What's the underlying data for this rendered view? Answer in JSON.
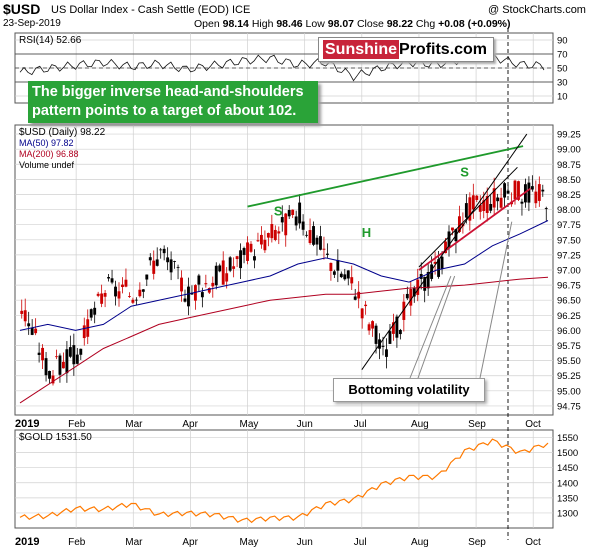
{
  "header": {
    "symbol": "$USD",
    "description": "US Dollar Index - Cash Settle (EOD) ICE",
    "date": "23-Sep-2019",
    "open_label": "Open",
    "open": "98.14",
    "high_label": "High",
    "high": "98.46",
    "low_label": "Low",
    "low": "98.07",
    "close_label": "Close",
    "close": "98.22",
    "chg_label": "Chg",
    "chg": "+0.08 (+0.09%)",
    "brand": "@ StockCharts.com"
  },
  "logo": {
    "part1": "Sunshine",
    "part2": "Profits.com"
  },
  "callout": "The bigger inverse head-and-shoulders pattern points to a target of about 102.",
  "volatility_label": "Bottoming volatility",
  "pattern_labels": [
    "S",
    "H",
    "S"
  ],
  "colors": {
    "up": "#000000",
    "down": "#cc0000",
    "ma50": "#00008b",
    "ma200": "#b00020",
    "gold": "#ff7a00",
    "green_line": "#1f9a2c",
    "red_line": "#cc1133",
    "grid": "#d0d0d0",
    "callout_bg": "#2aa338"
  },
  "chart_data": [
    {
      "panel": "rsi",
      "type": "line",
      "legend": "RSI(14) 52.66",
      "ylim": [
        0,
        100
      ],
      "y_ticks": [
        "90",
        "70",
        "50",
        "30",
        "10"
      ],
      "reference_lines": [
        70,
        50,
        30
      ],
      "x": [
        "Jan 1",
        "Jan 15",
        "Jan 29",
        "Feb 12",
        "Feb 26",
        "Mar 12",
        "Mar 26",
        "Apr 9",
        "Apr 23",
        "May 7",
        "May 21",
        "Jun 4",
        "Jun 18",
        "Jul 2",
        "Jul 16",
        "Jul 30",
        "Aug 13",
        "Aug 27",
        "Sep 10",
        "Sep 23"
      ],
      "values": [
        44,
        49,
        54,
        58,
        52,
        56,
        48,
        54,
        60,
        64,
        55,
        58,
        38,
        50,
        58,
        55,
        63,
        66,
        55,
        52.66
      ]
    },
    {
      "panel": "price",
      "type": "candlestick",
      "legend": [
        "$USD (Daily) 98.22",
        "MA(50) 97.82",
        "MA(200) 96.88",
        "Volume undef"
      ],
      "ylim": [
        94.6,
        99.4
      ],
      "y_ticks": [
        "99.25",
        "99.00",
        "98.75",
        "98.50",
        "98.25",
        "98.00",
        "97.75",
        "97.50",
        "97.25",
        "97.00",
        "96.75",
        "96.50",
        "96.25",
        "96.00",
        "95.75",
        "95.50",
        "95.25",
        "95.00",
        "94.75"
      ],
      "x_tick_labels": [
        "2019",
        "Feb",
        "Mar",
        "Apr",
        "May",
        "Jun",
        "Jul",
        "Aug",
        "Sep",
        "Oct"
      ],
      "x": [
        "Jan 1",
        "Jan 15",
        "Jan 29",
        "Feb 12",
        "Feb 26",
        "Mar 12",
        "Mar 26",
        "Apr 9",
        "Apr 23",
        "May 7",
        "May 21",
        "Jun 4",
        "Jun 18",
        "Jul 2",
        "Jul 16",
        "Jul 30",
        "Aug 13",
        "Aug 27",
        "Sep 10",
        "Sep 23"
      ],
      "close": [
        96.4,
        95.3,
        95.6,
        96.7,
        96.6,
        97.3,
        96.6,
        96.9,
        97.2,
        97.6,
        97.9,
        97.2,
        96.7,
        95.6,
        96.5,
        97.1,
        98.0,
        98.2,
        98.3,
        98.22
      ],
      "ma50": [
        96.0,
        96.1,
        96.0,
        96.1,
        96.4,
        96.5,
        96.6,
        96.7,
        96.8,
        96.9,
        97.1,
        97.2,
        97.1,
        96.9,
        96.8,
        97.0,
        97.1,
        97.4,
        97.6,
        97.82
      ],
      "ma200": [
        94.8,
        95.1,
        95.4,
        95.7,
        95.9,
        96.1,
        96.2,
        96.3,
        96.4,
        96.5,
        96.55,
        96.6,
        96.6,
        96.65,
        96.7,
        96.72,
        96.75,
        96.8,
        96.85,
        96.88
      ],
      "annotations": [
        {
          "type": "resistance",
          "color": "green",
          "from": [
            "May 1",
            98.05
          ],
          "to": [
            "Sep 26",
            99.05
          ]
        },
        {
          "type": "support",
          "color": "red",
          "from": [
            "Aug 1",
            97.0
          ],
          "to": [
            "Sep 30",
            98.35
          ]
        },
        {
          "type": "trendline",
          "color": "black",
          "from": [
            "Jul 1",
            95.35
          ],
          "to": [
            "Sep 28",
            99.25
          ]
        },
        {
          "type": "trendline",
          "color": "black",
          "from": [
            "Aug 1",
            97.05
          ],
          "to": [
            "Sep 23",
            98.7
          ]
        }
      ]
    },
    {
      "panel": "gold",
      "type": "line",
      "legend": "$GOLD 1531.50",
      "ylim": [
        1250,
        1575
      ],
      "y_ticks": [
        "1550",
        "1500",
        "1450",
        "1400",
        "1350",
        "1300"
      ],
      "x_tick_labels": [
        "2019",
        "Feb",
        "Mar",
        "Apr",
        "May",
        "Jun",
        "Jul",
        "Aug",
        "Sep",
        "Oct"
      ],
      "x": [
        "Jan 1",
        "Jan 15",
        "Jan 29",
        "Feb 12",
        "Feb 26",
        "Mar 12",
        "Mar 26",
        "Apr 9",
        "Apr 23",
        "May 7",
        "May 21",
        "Jun 4",
        "Jun 18",
        "Jul 2",
        "Jul 16",
        "Jul 30",
        "Aug 13",
        "Aug 27",
        "Sep 10",
        "Sep 23"
      ],
      "values": [
        1285,
        1290,
        1315,
        1312,
        1330,
        1295,
        1300,
        1295,
        1275,
        1283,
        1285,
        1330,
        1345,
        1395,
        1420,
        1420,
        1505,
        1540,
        1500,
        1531.5
      ]
    }
  ]
}
